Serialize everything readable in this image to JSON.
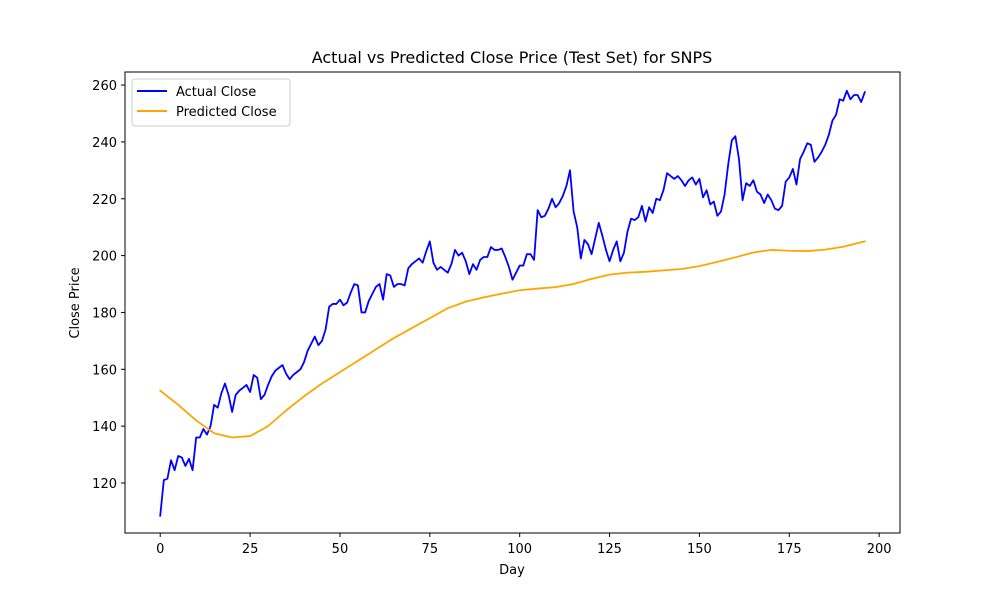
{
  "chart_data": {
    "type": "line",
    "title": "Actual vs Predicted Close Price (Test Set) for SNPS",
    "xlabel": "Day",
    "ylabel": "Close Price",
    "xlim": [
      -9.8,
      205.8
    ],
    "ylim": [
      102.4,
      264.6
    ],
    "xticks": [
      0,
      25,
      50,
      75,
      100,
      125,
      150,
      175,
      200
    ],
    "yticks": [
      120,
      140,
      160,
      180,
      200,
      220,
      240,
      260
    ],
    "grid": false,
    "legend_position": "upper-left",
    "series": [
      {
        "name": "Actual Close",
        "color": "#0000ff",
        "x": [
          0,
          1,
          2,
          3,
          4,
          5,
          6,
          7,
          8,
          9,
          10,
          11,
          12,
          13,
          14,
          15,
          16,
          17,
          18,
          19,
          20,
          21,
          22,
          23,
          24,
          25,
          26,
          27,
          28,
          29,
          30,
          31,
          32,
          33,
          34,
          35,
          36,
          37,
          38,
          39,
          40,
          41,
          42,
          43,
          44,
          45,
          46,
          47,
          48,
          49,
          50,
          51,
          52,
          53,
          54,
          55,
          56,
          57,
          58,
          59,
          60,
          61,
          62,
          63,
          64,
          65,
          66,
          67,
          68,
          69,
          70,
          71,
          72,
          73,
          74,
          75,
          76,
          77,
          78,
          79,
          80,
          81,
          82,
          83,
          84,
          85,
          86,
          87,
          88,
          89,
          90,
          91,
          92,
          93,
          94,
          95,
          96,
          97,
          98,
          99,
          100,
          101,
          102,
          103,
          104,
          105,
          106,
          107,
          108,
          109,
          110,
          111,
          112,
          113,
          114,
          115,
          116,
          117,
          118,
          119,
          120,
          121,
          122,
          123,
          124,
          125,
          126,
          127,
          128,
          129,
          130,
          131,
          132,
          133,
          134,
          135,
          136,
          137,
          138,
          139,
          140,
          141,
          142,
          143,
          144,
          145,
          146,
          147,
          148,
          149,
          150,
          151,
          152,
          153,
          154,
          155,
          156,
          157,
          158,
          159,
          160,
          161,
          162,
          163,
          164,
          165,
          166,
          167,
          168,
          169,
          170,
          171,
          172,
          173,
          174,
          175,
          176,
          177,
          178,
          179,
          180,
          181,
          182,
          183,
          184,
          185,
          186,
          187,
          188,
          189,
          190,
          191,
          192,
          193,
          194,
          195,
          196
        ],
        "values": [
          108.5,
          121,
          121.5,
          128,
          124.5,
          129.5,
          129,
          126,
          128.5,
          124.5,
          136,
          136,
          139,
          137,
          140,
          147.5,
          146.5,
          151.5,
          155,
          151,
          145,
          151,
          152.5,
          153.5,
          154.5,
          152,
          158,
          157,
          149.5,
          151,
          154.5,
          157.5,
          159.5,
          160.5,
          161.5,
          158.5,
          156.5,
          158,
          159,
          160,
          162.5,
          166.5,
          169,
          171.5,
          168.5,
          170,
          174,
          182,
          183,
          183,
          184.5,
          182.5,
          183.5,
          187,
          190,
          189.5,
          180,
          180,
          184,
          186.5,
          189,
          190,
          184.5,
          193.5,
          193,
          189,
          190,
          190,
          189.5,
          195.5,
          197,
          198,
          199,
          197.5,
          201.5,
          205,
          197.5,
          195,
          196,
          195,
          194,
          197,
          202,
          200,
          201,
          198,
          193.5,
          197,
          195,
          198.5,
          199.5,
          199.5,
          203,
          202,
          202,
          202.5,
          199.5,
          196,
          191.5,
          194,
          196.5,
          196.5,
          200.5,
          200.5,
          198.5,
          216,
          213.5,
          214,
          216.5,
          220,
          217,
          218.5,
          221,
          224.5,
          230,
          215.5,
          210,
          199,
          205.5,
          204,
          200.5,
          206,
          211.5,
          207,
          202,
          198,
          202,
          205,
          198,
          201,
          208.5,
          213,
          212.5,
          213.5,
          217.5,
          212,
          217,
          215,
          220,
          219.5,
          223,
          229,
          228,
          227,
          228,
          226.5,
          224.5,
          226.5,
          227.5,
          225,
          227,
          220.5,
          223,
          218,
          219,
          214,
          215.5,
          221.5,
          232,
          240.5,
          242,
          234,
          219.5,
          225.5,
          224.5,
          226.5,
          222.5,
          221.5,
          218.5,
          221.5,
          219.5,
          216.5,
          216,
          217.5,
          226,
          227.5,
          230.5,
          225,
          234,
          236.5,
          239.5,
          239,
          233,
          234.5,
          236.5,
          239,
          242.5,
          247.5,
          249.5,
          255,
          254.5,
          258,
          255,
          256.5,
          256.5,
          254,
          257.5
        ]
      },
      {
        "name": "Predicted Close",
        "color": "#ffa500",
        "x": [
          0,
          5,
          10,
          15,
          20,
          25,
          30,
          35,
          40,
          45,
          50,
          55,
          60,
          65,
          70,
          75,
          80,
          85,
          90,
          95,
          100,
          105,
          110,
          115,
          120,
          125,
          130,
          135,
          140,
          145,
          150,
          155,
          160,
          165,
          170,
          175,
          180,
          185,
          190,
          196
        ],
        "values": [
          152.5,
          147.5,
          142,
          137.5,
          136,
          136.5,
          140,
          145.5,
          150.5,
          155,
          159,
          163,
          167,
          171,
          174.5,
          178,
          181.5,
          183.8,
          185.3,
          186.6,
          187.8,
          188.4,
          188.9,
          190,
          191.8,
          193.3,
          194,
          194.3,
          194.8,
          195.3,
          196.3,
          197.8,
          199.4,
          201.1,
          202,
          201.7,
          201.6,
          202.1,
          203.1,
          205
        ]
      }
    ]
  }
}
